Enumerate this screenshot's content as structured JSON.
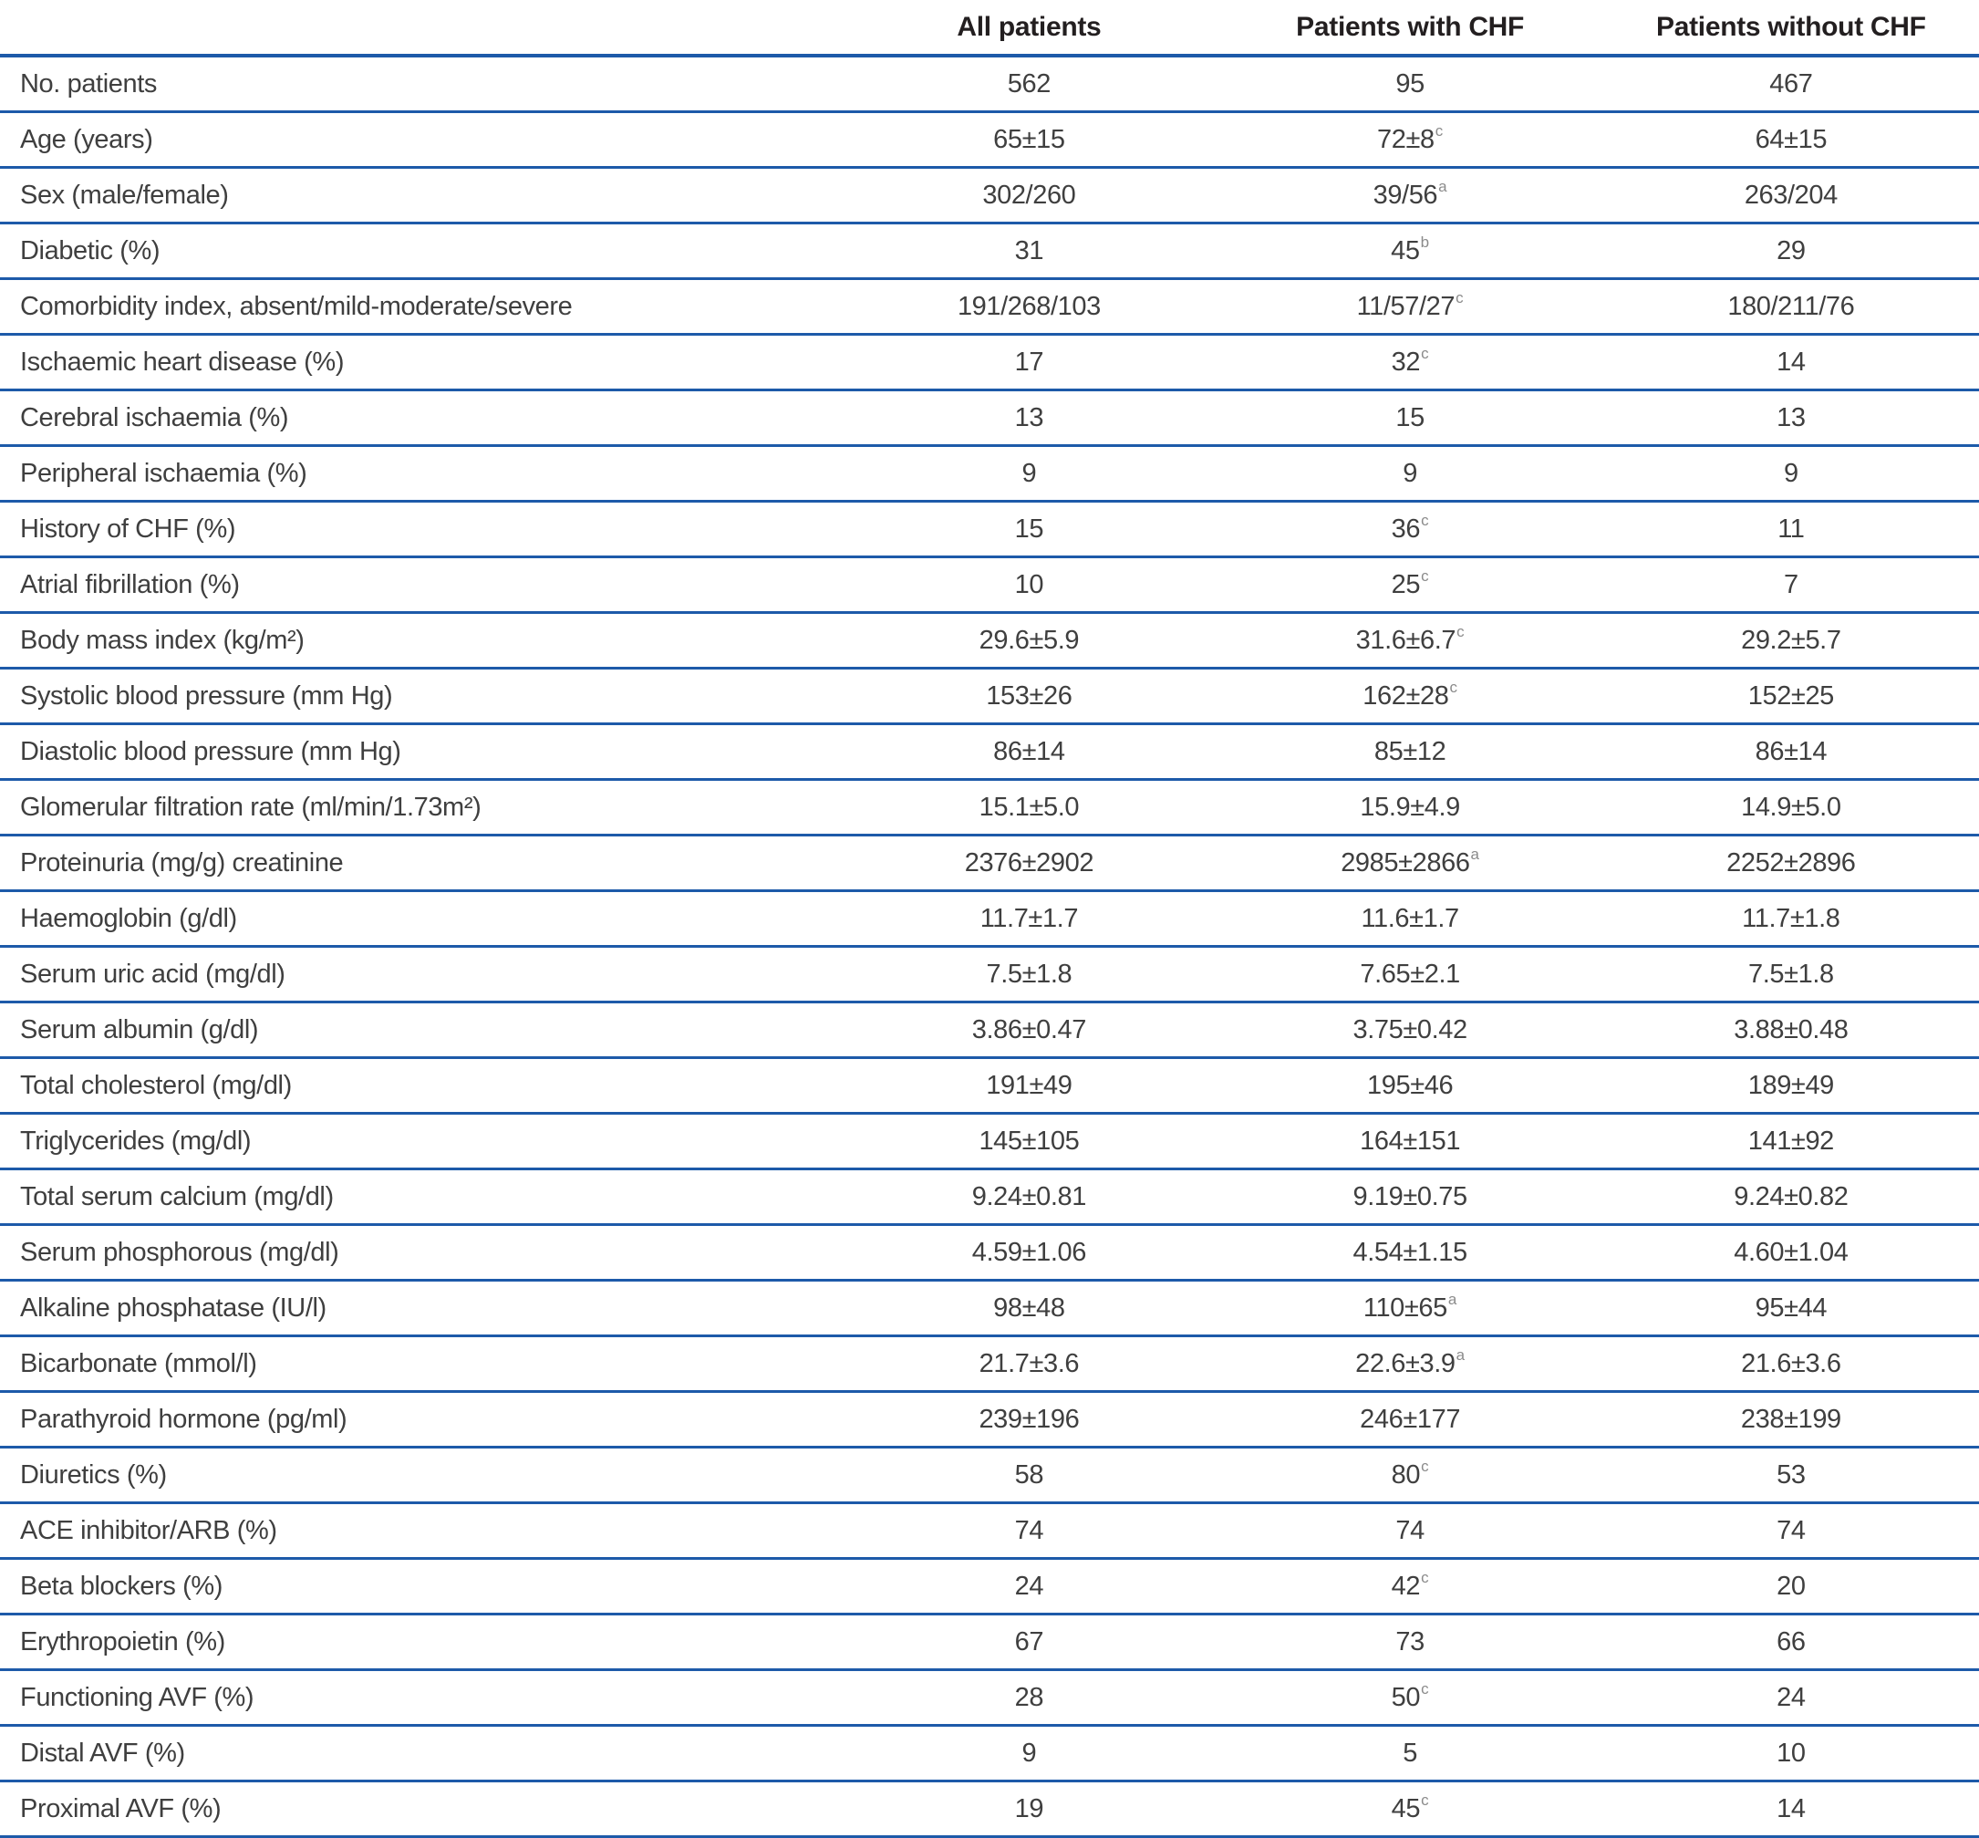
{
  "table": {
    "columns": [
      "",
      "All patients",
      "Patients with CHF",
      "Patients without CHF"
    ],
    "rule_color": "#1d5aa9",
    "rows": [
      {
        "label": "No. patients",
        "values": [
          {
            "text": "562",
            "sup": ""
          },
          {
            "text": "95",
            "sup": ""
          },
          {
            "text": "467",
            "sup": ""
          }
        ]
      },
      {
        "label": "Age (years)",
        "values": [
          {
            "text": "65±15",
            "sup": ""
          },
          {
            "text": "72±8",
            "sup": "c"
          },
          {
            "text": "64±15",
            "sup": ""
          }
        ]
      },
      {
        "label": "Sex (male/female)",
        "values": [
          {
            "text": "302/260",
            "sup": ""
          },
          {
            "text": "39/56",
            "sup": "a"
          },
          {
            "text": "263/204",
            "sup": ""
          }
        ]
      },
      {
        "label": "Diabetic (%)",
        "values": [
          {
            "text": "31",
            "sup": ""
          },
          {
            "text": "45",
            "sup": "b"
          },
          {
            "text": "29",
            "sup": ""
          }
        ]
      },
      {
        "label": "Comorbidity index, absent/mild-moderate/severe",
        "values": [
          {
            "text": "191/268/103",
            "sup": ""
          },
          {
            "text": "11/57/27",
            "sup": "c"
          },
          {
            "text": "180/211/76",
            "sup": ""
          }
        ]
      },
      {
        "label": "Ischaemic heart disease (%)",
        "values": [
          {
            "text": "17",
            "sup": ""
          },
          {
            "text": "32",
            "sup": "c"
          },
          {
            "text": "14",
            "sup": ""
          }
        ]
      },
      {
        "label": "Cerebral ischaemia (%)",
        "values": [
          {
            "text": "13",
            "sup": ""
          },
          {
            "text": "15",
            "sup": ""
          },
          {
            "text": "13",
            "sup": ""
          }
        ]
      },
      {
        "label": "Peripheral ischaemia (%)",
        "values": [
          {
            "text": "9",
            "sup": ""
          },
          {
            "text": "9",
            "sup": ""
          },
          {
            "text": "9",
            "sup": ""
          }
        ]
      },
      {
        "label": "History of CHF (%)",
        "values": [
          {
            "text": "15",
            "sup": ""
          },
          {
            "text": "36",
            "sup": "c"
          },
          {
            "text": "11",
            "sup": ""
          }
        ]
      },
      {
        "label": "Atrial fibrillation (%)",
        "values": [
          {
            "text": "10",
            "sup": ""
          },
          {
            "text": "25",
            "sup": "c"
          },
          {
            "text": "7",
            "sup": ""
          }
        ]
      },
      {
        "label": "Body mass index (kg/m²)",
        "values": [
          {
            "text": "29.6±5.9",
            "sup": ""
          },
          {
            "text": "31.6±6.7",
            "sup": "c"
          },
          {
            "text": "29.2±5.7",
            "sup": ""
          }
        ]
      },
      {
        "label": "Systolic blood pressure (mm Hg)",
        "values": [
          {
            "text": "153±26",
            "sup": ""
          },
          {
            "text": "162±28",
            "sup": "c"
          },
          {
            "text": "152±25",
            "sup": ""
          }
        ]
      },
      {
        "label": "Diastolic blood pressure (mm Hg)",
        "values": [
          {
            "text": "86±14",
            "sup": ""
          },
          {
            "text": "85±12",
            "sup": ""
          },
          {
            "text": "86±14",
            "sup": ""
          }
        ]
      },
      {
        "label": "Glomerular filtration rate (ml/min/1.73m²)",
        "values": [
          {
            "text": "15.1±5.0",
            "sup": ""
          },
          {
            "text": "15.9±4.9",
            "sup": ""
          },
          {
            "text": "14.9±5.0",
            "sup": ""
          }
        ]
      },
      {
        "label": "Proteinuria (mg/g) creatinine",
        "values": [
          {
            "text": "2376±2902",
            "sup": ""
          },
          {
            "text": "2985±2866",
            "sup": "a"
          },
          {
            "text": "2252±2896",
            "sup": ""
          }
        ]
      },
      {
        "label": "Haemoglobin (g/dl)",
        "values": [
          {
            "text": "11.7±1.7",
            "sup": ""
          },
          {
            "text": "11.6±1.7",
            "sup": ""
          },
          {
            "text": "11.7±1.8",
            "sup": ""
          }
        ]
      },
      {
        "label": "Serum uric acid (mg/dl)",
        "values": [
          {
            "text": "7.5±1.8",
            "sup": ""
          },
          {
            "text": "7.65±2.1",
            "sup": ""
          },
          {
            "text": "7.5±1.8",
            "sup": ""
          }
        ]
      },
      {
        "label": "Serum albumin (g/dl)",
        "values": [
          {
            "text": "3.86±0.47",
            "sup": ""
          },
          {
            "text": "3.75±0.42",
            "sup": ""
          },
          {
            "text": "3.88±0.48",
            "sup": ""
          }
        ]
      },
      {
        "label": "Total cholesterol (mg/dl)",
        "values": [
          {
            "text": "191±49",
            "sup": ""
          },
          {
            "text": "195±46",
            "sup": ""
          },
          {
            "text": "189±49",
            "sup": ""
          }
        ]
      },
      {
        "label": "Triglycerides (mg/dl)",
        "values": [
          {
            "text": "145±105",
            "sup": ""
          },
          {
            "text": "164±151",
            "sup": ""
          },
          {
            "text": "141±92",
            "sup": ""
          }
        ]
      },
      {
        "label": "Total serum calcium (mg/dl)",
        "values": [
          {
            "text": "9.24±0.81",
            "sup": ""
          },
          {
            "text": "9.19±0.75",
            "sup": ""
          },
          {
            "text": "9.24±0.82",
            "sup": ""
          }
        ]
      },
      {
        "label": "Serum phosphorous (mg/dl)",
        "values": [
          {
            "text": "4.59±1.06",
            "sup": ""
          },
          {
            "text": "4.54±1.15",
            "sup": ""
          },
          {
            "text": "4.60±1.04",
            "sup": ""
          }
        ]
      },
      {
        "label": "Alkaline phosphatase (IU/l)",
        "values": [
          {
            "text": "98±48",
            "sup": ""
          },
          {
            "text": "110±65",
            "sup": "a"
          },
          {
            "text": "95±44",
            "sup": ""
          }
        ]
      },
      {
        "label": "Bicarbonate (mmol/l)",
        "values": [
          {
            "text": "21.7±3.6",
            "sup": ""
          },
          {
            "text": "22.6±3.9",
            "sup": "a"
          },
          {
            "text": "21.6±3.6",
            "sup": ""
          }
        ]
      },
      {
        "label": "Parathyroid hormone (pg/ml)",
        "values": [
          {
            "text": "239±196",
            "sup": ""
          },
          {
            "text": "246±177",
            "sup": ""
          },
          {
            "text": "238±199",
            "sup": ""
          }
        ]
      },
      {
        "label": "Diuretics (%)",
        "values": [
          {
            "text": "58",
            "sup": ""
          },
          {
            "text": "80",
            "sup": "c"
          },
          {
            "text": "53",
            "sup": ""
          }
        ]
      },
      {
        "label": "ACE inhibitor/ARB (%)",
        "values": [
          {
            "text": "74",
            "sup": ""
          },
          {
            "text": "74",
            "sup": ""
          },
          {
            "text": "74",
            "sup": ""
          }
        ]
      },
      {
        "label": "Beta blockers (%)",
        "values": [
          {
            "text": "24",
            "sup": ""
          },
          {
            "text": "42",
            "sup": "c"
          },
          {
            "text": "20",
            "sup": ""
          }
        ]
      },
      {
        "label": "Erythropoietin (%)",
        "values": [
          {
            "text": "67",
            "sup": ""
          },
          {
            "text": "73",
            "sup": ""
          },
          {
            "text": "66",
            "sup": ""
          }
        ]
      },
      {
        "label": "Functioning AVF (%)",
        "values": [
          {
            "text": "28",
            "sup": ""
          },
          {
            "text": "50",
            "sup": "c"
          },
          {
            "text": "24",
            "sup": ""
          }
        ]
      },
      {
        "label": "Distal AVF (%)",
        "values": [
          {
            "text": "9",
            "sup": ""
          },
          {
            "text": "5",
            "sup": ""
          },
          {
            "text": "10",
            "sup": ""
          }
        ]
      },
      {
        "label": "Proximal AVF (%)",
        "values": [
          {
            "text": "19",
            "sup": ""
          },
          {
            "text": "45",
            "sup": "c"
          },
          {
            "text": "14",
            "sup": ""
          }
        ]
      }
    ]
  }
}
